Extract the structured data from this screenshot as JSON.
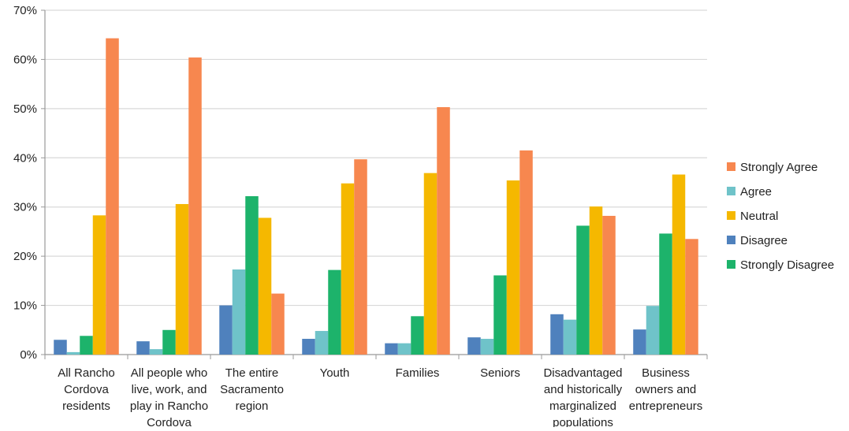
{
  "chart_data": {
    "type": "bar",
    "title": "",
    "xlabel": "",
    "ylabel": "",
    "ylim": [
      0,
      70
    ],
    "yticks": [
      0,
      10,
      20,
      30,
      40,
      50,
      60,
      70
    ],
    "ytick_labels": [
      "0%",
      "10%",
      "20%",
      "30%",
      "40%",
      "50%",
      "60%",
      "70%"
    ],
    "grid": true,
    "legend_position": "right",
    "categories": [
      "All Rancho Cordova residents",
      "All people who live, work, and play in Rancho Cordova",
      "The entire Sacramento region",
      "Youth",
      "Families",
      "Seniors",
      "Disadvantaged and historically marginalized populations",
      "Business owners and entrepreneurs"
    ],
    "category_label_lines": [
      [
        "All Rancho",
        "Cordova",
        "residents"
      ],
      [
        "All people who",
        "live, work, and",
        "play in Rancho",
        "Cordova"
      ],
      [
        "The entire",
        "Sacramento",
        "region"
      ],
      [
        "Youth"
      ],
      [
        "Families"
      ],
      [
        "Seniors"
      ],
      [
        "Disadvantaged",
        "and historically",
        "marginalized",
        "populations"
      ],
      [
        "Business",
        "owners and",
        "entrepreneurs"
      ]
    ],
    "series": [
      {
        "name": "Disagree",
        "color": "#4f81bd",
        "values": [
          3,
          2.7,
          10,
          3.2,
          2.3,
          3.5,
          8.2,
          5.1
        ]
      },
      {
        "name": "Agree",
        "color": "#6fc3c9",
        "values": [
          0.5,
          1.1,
          17.3,
          4.8,
          2.3,
          3.2,
          7.1,
          9.9
        ]
      },
      {
        "name": "Strongly Disagree",
        "color": "#1db36b",
        "values": [
          3.8,
          5,
          32.2,
          17.2,
          7.8,
          16.1,
          26.2,
          24.6
        ]
      },
      {
        "name": "Neutral",
        "color": "#f5b800",
        "values": [
          28.3,
          30.6,
          27.8,
          34.8,
          36.9,
          35.4,
          30.1,
          36.6
        ]
      },
      {
        "name": "Strongly Agree",
        "color": "#f7874f",
        "values": [
          64.3,
          60.4,
          12.4,
          39.7,
          50.3,
          41.5,
          28.2,
          23.5
        ]
      }
    ],
    "legend_order": [
      "Strongly Agree",
      "Agree",
      "Neutral",
      "Disagree",
      "Strongly Disagree"
    ]
  }
}
